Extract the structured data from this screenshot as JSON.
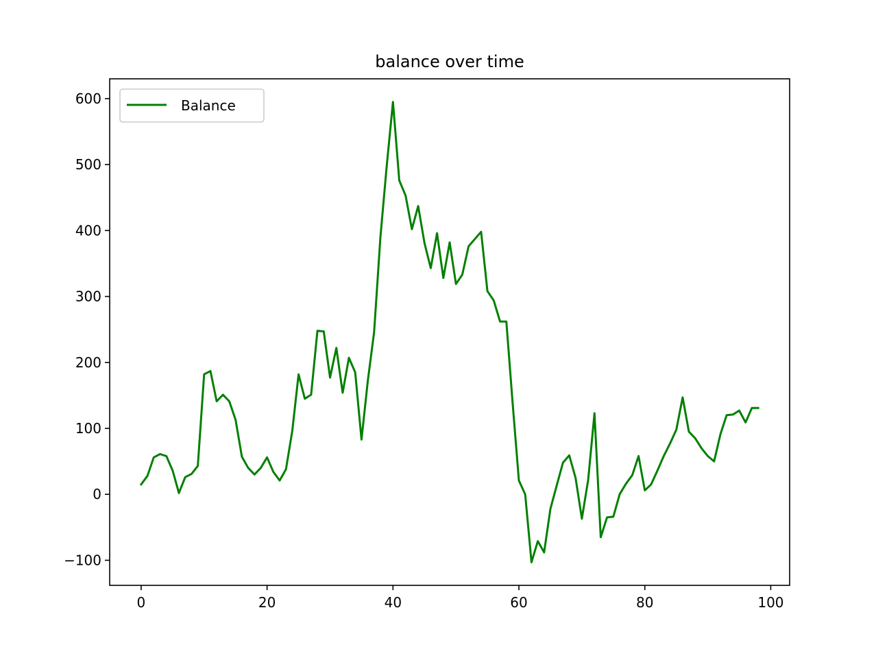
{
  "chart_data": {
    "type": "line",
    "title": "balance over time",
    "xlabel": "",
    "ylabel": "",
    "xlim": [
      -5,
      103
    ],
    "ylim": [
      -138,
      630
    ],
    "x_ticks": [
      0,
      20,
      40,
      60,
      80,
      100
    ],
    "x_tick_labels": [
      "0",
      "20",
      "40",
      "60",
      "80",
      "100"
    ],
    "y_ticks": [
      -100,
      0,
      100,
      200,
      300,
      400,
      500,
      600
    ],
    "y_tick_labels": [
      "−100",
      "0",
      "100",
      "200",
      "300",
      "400",
      "500",
      "600"
    ],
    "grid": false,
    "legend": {
      "position": "upper-left",
      "entries": [
        "Balance"
      ]
    },
    "series": [
      {
        "name": "Balance",
        "color": "#008000",
        "x": [
          0,
          1,
          2,
          3,
          4,
          5,
          6,
          7,
          8,
          9,
          10,
          11,
          12,
          13,
          14,
          15,
          16,
          17,
          18,
          19,
          20,
          21,
          22,
          23,
          24,
          25,
          26,
          27,
          28,
          29,
          30,
          31,
          32,
          33,
          34,
          35,
          36,
          37,
          38,
          39,
          40,
          41,
          42,
          43,
          44,
          45,
          46,
          47,
          48,
          49,
          50,
          51,
          52,
          53,
          54,
          55,
          56,
          57,
          58,
          59,
          60,
          61,
          62,
          63,
          64,
          65,
          66,
          67,
          68,
          69,
          70,
          71,
          72,
          73,
          74,
          75,
          76,
          77,
          78,
          79,
          80,
          81,
          82,
          83,
          84,
          85,
          86,
          87,
          88,
          89,
          90,
          91,
          92,
          93,
          94,
          95,
          96,
          97,
          98
        ],
        "values": [
          15,
          28,
          56,
          61,
          58,
          36,
          2,
          26,
          31,
          43,
          182,
          187,
          141,
          151,
          141,
          113,
          57,
          40,
          30,
          40,
          56,
          34,
          21,
          38,
          96,
          182,
          145,
          151,
          248,
          247,
          177,
          222,
          154,
          207,
          185,
          83,
          172,
          246,
          390,
          497,
          595,
          476,
          453,
          402,
          437,
          381,
          343,
          396,
          328,
          382,
          319,
          333,
          376,
          387,
          398,
          308,
          294,
          262,
          262,
          138,
          21,
          0,
          -103,
          -71,
          -88,
          -22,
          13,
          48,
          59,
          25,
          -37,
          22,
          123,
          -65,
          -35,
          -34,
          0,
          16,
          29,
          58,
          6,
          15,
          36,
          58,
          77,
          98,
          147,
          95,
          85,
          70,
          58,
          50,
          91,
          120,
          121,
          127,
          109,
          131,
          131
        ]
      }
    ]
  }
}
